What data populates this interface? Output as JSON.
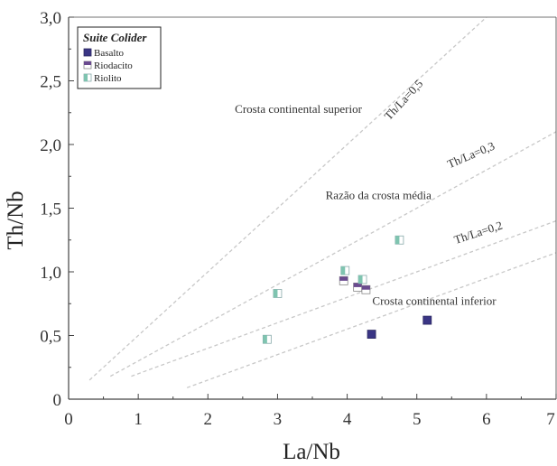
{
  "chart_data": {
    "type": "scatter",
    "xlabel": "La/Nb",
    "ylabel": "Th/Nb",
    "xlim": [
      0,
      7
    ],
    "ylim": [
      0,
      3
    ],
    "xticks": [
      "0",
      "1",
      "2",
      "3",
      "4",
      "5",
      "6",
      "7"
    ],
    "yticks": [
      "0",
      "0,5",
      "1,0",
      "1,5",
      "2,0",
      "2,5",
      "3,0"
    ],
    "grid": false,
    "legend": {
      "title": "Suite Colider",
      "placement": "top-left"
    },
    "series": [
      {
        "name": "Basalto",
        "marker": "filled-square",
        "color": "#3a3585",
        "points": [
          [
            4.35,
            0.51
          ],
          [
            5.15,
            0.62
          ]
        ]
      },
      {
        "name": "Riodacito",
        "marker": "half-square-top",
        "color": "#6a4a8f",
        "points": [
          [
            3.95,
            0.93
          ],
          [
            4.15,
            0.88
          ],
          [
            4.27,
            0.86
          ]
        ]
      },
      {
        "name": "Riolito",
        "marker": "half-square-left",
        "color": "#7fc4b0",
        "points": [
          [
            2.85,
            0.47
          ],
          [
            3.0,
            0.83
          ],
          [
            3.97,
            1.01
          ],
          [
            4.22,
            0.94
          ],
          [
            4.75,
            1.25
          ]
        ]
      }
    ],
    "reference_lines": [
      {
        "label": "Th/La=0,5",
        "slope": 0.5,
        "x_start": 0.3,
        "x_end": 6.3
      },
      {
        "label": "Th/La=0,3",
        "slope": 0.3,
        "x_start": 0.6,
        "x_end": 7.3
      },
      {
        "label": "Th/La=0,2",
        "slope": 0.2,
        "x_start": 0.9,
        "x_end": 8.0
      },
      {
        "label": "",
        "slope": 0.2,
        "intercept": -0.25,
        "x_start": 1.7,
        "x_end": 7.0
      }
    ],
    "annotations": [
      {
        "text": "Crosta continental superior",
        "x": 3.3,
        "y": 2.25
      },
      {
        "text": "Razão da crosta média",
        "x": 4.45,
        "y": 1.57
      },
      {
        "text": "Crosta continental inferior",
        "x": 5.25,
        "y": 0.74
      }
    ],
    "line_labels": [
      {
        "text": "Th/La=0,5",
        "x": 4.85,
        "y": 2.33,
        "angle": -47
      },
      {
        "text": "Th/La=0,3",
        "x": 5.8,
        "y": 1.89,
        "angle": -23
      },
      {
        "text": "Th/La=0,2",
        "x": 5.9,
        "y": 1.28,
        "angle": -18
      }
    ]
  }
}
